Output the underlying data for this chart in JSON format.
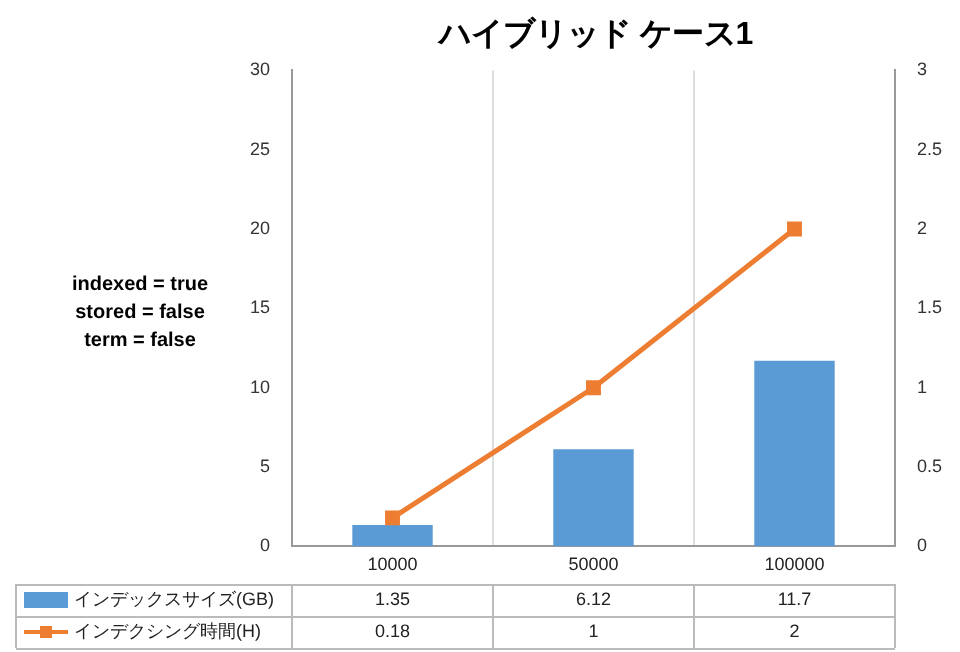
{
  "chart_data": {
    "type": "bar",
    "title": "ハイブリッド ケース1",
    "categories": [
      "10000",
      "50000",
      "100000"
    ],
    "series": [
      {
        "name": "インデックスサイズ(GB)",
        "color": "#5b9bd5",
        "values": [
          1.35,
          6.12,
          11.7
        ]
      },
      {
        "name": "インデクシング時間(H)",
        "type": "line",
        "axis": "y2",
        "color": "#ed7d31",
        "values": [
          0.18,
          1,
          2
        ],
        "marker": "square",
        "line_style": "solid"
      }
    ],
    "ylim": [
      0,
      30
    ],
    "yticks": [
      0,
      5,
      10,
      15,
      20,
      25,
      30
    ],
    "y2lim": [
      0,
      3
    ],
    "y2ticks": [
      0,
      0.5,
      1,
      1.5,
      2,
      2.5,
      3
    ],
    "annotations": [
      "indexed = true",
      "stored = false",
      "term = false"
    ],
    "data_labels": true,
    "grid": "x",
    "legend": "bottom"
  }
}
